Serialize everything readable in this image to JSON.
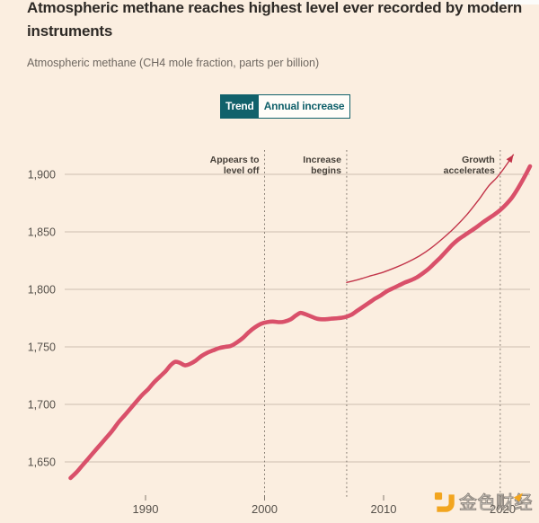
{
  "header": {
    "title": "Atmospheric methane reaches highest level ever recorded by modern instruments",
    "subtitle": "Atmospheric methane (CH4 mole fraction, parts per billion)"
  },
  "toggle": {
    "options": [
      "Trend",
      "Annual increase"
    ],
    "selected": "Trend",
    "accent_color": "#11616b"
  },
  "watermark": {
    "text": "金色财经",
    "icon": "jinse-gold-logo",
    "icon_color": "#f2a51f",
    "text_color": "#8d8780"
  },
  "chart_data": {
    "type": "line",
    "title": "Atmospheric methane reaches highest level ever recorded by modern instruments",
    "subtitle": "Atmospheric methane (CH4 mole fraction, parts per billion)",
    "xlabel": "",
    "ylabel": "parts per billion",
    "xlim": [
      1983.2,
      2022.6
    ],
    "ylim": [
      1628,
      1922
    ],
    "grid": true,
    "legend": "none",
    "y_ticks": [
      {
        "value": 1650,
        "label": "1,650"
      },
      {
        "value": 1700,
        "label": "1,700"
      },
      {
        "value": 1750,
        "label": "1,750"
      },
      {
        "value": 1800,
        "label": "1,800"
      },
      {
        "value": 1850,
        "label": "1,850"
      },
      {
        "value": 1900,
        "label": "1,900"
      }
    ],
    "x_ticks": [
      {
        "value": 1990,
        "label": "1990"
      },
      {
        "value": 2000,
        "label": "2000"
      },
      {
        "value": 2010,
        "label": "2010"
      },
      {
        "value": 2020,
        "label": "2020"
      }
    ],
    "annotations": [
      {
        "year": 2000,
        "lines": [
          "Appears to",
          "level off"
        ]
      },
      {
        "year": 2006.9,
        "lines": [
          "Increase",
          "begins"
        ]
      },
      {
        "year": 2019.8,
        "lines": [
          "Growth",
          "accelerates"
        ]
      }
    ],
    "series": [
      {
        "name": "trend",
        "color": "#d9506a",
        "width": 4.6,
        "arrow": false,
        "points": [
          [
            1983.7,
            1636
          ],
          [
            1984.2,
            1641
          ],
          [
            1984.7,
            1647
          ],
          [
            1985.2,
            1653
          ],
          [
            1985.7,
            1659
          ],
          [
            1986.2,
            1665
          ],
          [
            1986.7,
            1671
          ],
          [
            1987.2,
            1677
          ],
          [
            1987.7,
            1684
          ],
          [
            1988.2,
            1690
          ],
          [
            1988.7,
            1696
          ],
          [
            1989.2,
            1702
          ],
          [
            1989.7,
            1708
          ],
          [
            1990.2,
            1713
          ],
          [
            1990.7,
            1719
          ],
          [
            1991.2,
            1724
          ],
          [
            1991.7,
            1729
          ],
          [
            1992.1,
            1734
          ],
          [
            1992.5,
            1737
          ],
          [
            1992.9,
            1736
          ],
          [
            1993.3,
            1734
          ],
          [
            1993.7,
            1735
          ],
          [
            1994.2,
            1738
          ],
          [
            1994.7,
            1742
          ],
          [
            1995.2,
            1745
          ],
          [
            1995.7,
            1747
          ],
          [
            1996.2,
            1749
          ],
          [
            1996.7,
            1750
          ],
          [
            1997.2,
            1751
          ],
          [
            1997.7,
            1754
          ],
          [
            1998.2,
            1758
          ],
          [
            1998.7,
            1763
          ],
          [
            1999.2,
            1767
          ],
          [
            1999.7,
            1770
          ],
          [
            2000.2,
            1771.5
          ],
          [
            2000.7,
            1772
          ],
          [
            2001.2,
            1771.5
          ],
          [
            2001.7,
            1772
          ],
          [
            2002.2,
            1774
          ],
          [
            2002.6,
            1777
          ],
          [
            2003,
            1779.5
          ],
          [
            2003.4,
            1778.5
          ],
          [
            2003.9,
            1776.5
          ],
          [
            2004.4,
            1774.5
          ],
          [
            2005,
            1774
          ],
          [
            2005.6,
            1774.5
          ],
          [
            2006.2,
            1775
          ],
          [
            2006.8,
            1776
          ],
          [
            2007.3,
            1778
          ],
          [
            2007.8,
            1781.5
          ],
          [
            2008.3,
            1785
          ],
          [
            2008.8,
            1788.5
          ],
          [
            2009.3,
            1792
          ],
          [
            2009.8,
            1795
          ],
          [
            2010.3,
            1798.5
          ],
          [
            2010.8,
            1801
          ],
          [
            2011.3,
            1803.5
          ],
          [
            2011.8,
            1806
          ],
          [
            2012.3,
            1808
          ],
          [
            2012.8,
            1810.5
          ],
          [
            2013.3,
            1814
          ],
          [
            2013.8,
            1818
          ],
          [
            2014.3,
            1823
          ],
          [
            2014.8,
            1828
          ],
          [
            2015.3,
            1833.5
          ],
          [
            2015.8,
            1839
          ],
          [
            2016.3,
            1843.5
          ],
          [
            2016.8,
            1847
          ],
          [
            2017.3,
            1850.5
          ],
          [
            2017.8,
            1854
          ],
          [
            2018.3,
            1858
          ],
          [
            2018.8,
            1861.5
          ],
          [
            2019.3,
            1865
          ],
          [
            2019.8,
            1869
          ],
          [
            2020.3,
            1874
          ],
          [
            2020.8,
            1880
          ],
          [
            2021.3,
            1888
          ],
          [
            2021.8,
            1897
          ],
          [
            2022.3,
            1907
          ]
        ]
      },
      {
        "name": "growth-acceleration",
        "color": "#c23449",
        "width": 1.4,
        "arrow": true,
        "points": [
          [
            2006.9,
            1806
          ],
          [
            2007.5,
            1807.5
          ],
          [
            2008.2,
            1809.5
          ],
          [
            2009,
            1812
          ],
          [
            2010,
            1815
          ],
          [
            2011,
            1819
          ],
          [
            2012,
            1823.5
          ],
          [
            2013,
            1829
          ],
          [
            2014,
            1836
          ],
          [
            2015,
            1844.5
          ],
          [
            2016,
            1854
          ],
          [
            2017,
            1865
          ],
          [
            2018,
            1878
          ],
          [
            2018.8,
            1889.5
          ],
          [
            2019.5,
            1897
          ],
          [
            2020.1,
            1905
          ],
          [
            2020.9,
            1917
          ]
        ]
      }
    ]
  }
}
